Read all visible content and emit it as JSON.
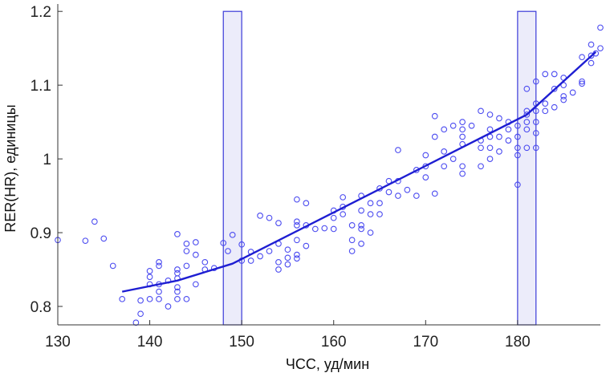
{
  "chart_data": {
    "type": "scatter",
    "title": "",
    "xlabel": "ЧСС, уд/мин",
    "ylabel": "RER(HR), единицы",
    "xlim": [
      130,
      189
    ],
    "ylim": [
      0.775,
      1.21
    ],
    "x_ticks": [
      130,
      140,
      150,
      160,
      170,
      180
    ],
    "x_tick_labels": [
      "130",
      "140",
      "150",
      "160",
      "170",
      "180"
    ],
    "y_ticks": [
      0.8,
      0.9,
      1.0,
      1.1,
      1.2
    ],
    "y_tick_labels": [
      "0.8",
      "0.9",
      "1",
      "1.1",
      "1.2"
    ],
    "grid": false,
    "legend": "none",
    "colors": {
      "points": "#4b4bf0",
      "line": "#1e1ed2",
      "box_fill": "#ececfa",
      "box_stroke": "#3a3ad8",
      "axis": "#333333"
    },
    "threshold_boxes": [
      {
        "x0": 148,
        "x1": 150,
        "y0": 0.775,
        "y1": 1.2
      },
      {
        "x0": 180,
        "x1": 182,
        "y0": 0.775,
        "y1": 1.2
      }
    ],
    "fit_line": [
      [
        137,
        0.82
      ],
      [
        143,
        0.835
      ],
      [
        149,
        0.858
      ],
      [
        181,
        1.06
      ],
      [
        188.5,
        1.145
      ]
    ],
    "series": [
      {
        "marker": "circle",
        "points": [
          [
            130,
            0.89
          ],
          [
            133,
            0.889
          ],
          [
            134,
            0.915
          ],
          [
            135,
            0.892
          ],
          [
            136,
            0.855
          ],
          [
            137,
            0.81
          ],
          [
            138.5,
            0.778
          ],
          [
            139,
            0.808
          ],
          [
            139,
            0.79
          ],
          [
            140,
            0.848
          ],
          [
            140,
            0.84
          ],
          [
            140,
            0.83
          ],
          [
            140,
            0.81
          ],
          [
            141,
            0.86
          ],
          [
            141,
            0.855
          ],
          [
            141,
            0.83
          ],
          [
            141,
            0.82
          ],
          [
            141,
            0.81
          ],
          [
            142,
            0.835
          ],
          [
            142,
            0.8
          ],
          [
            143,
            0.898
          ],
          [
            143,
            0.85
          ],
          [
            143,
            0.845
          ],
          [
            143,
            0.838
          ],
          [
            143,
            0.826
          ],
          [
            143,
            0.82
          ],
          [
            143,
            0.81
          ],
          [
            144,
            0.885
          ],
          [
            144,
            0.875
          ],
          [
            144,
            0.855
          ],
          [
            144,
            0.81
          ],
          [
            145,
            0.887
          ],
          [
            145,
            0.87
          ],
          [
            145,
            0.83
          ],
          [
            146,
            0.86
          ],
          [
            146,
            0.85
          ],
          [
            147,
            0.852
          ],
          [
            148,
            0.886
          ],
          [
            148.5,
            0.875
          ],
          [
            149,
            0.897
          ],
          [
            150,
            0.884
          ],
          [
            150,
            0.862
          ],
          [
            151,
            0.874
          ],
          [
            151,
            0.862
          ],
          [
            152,
            0.923
          ],
          [
            152,
            0.868
          ],
          [
            153,
            0.92
          ],
          [
            153,
            0.875
          ],
          [
            154,
            0.913
          ],
          [
            154,
            0.885
          ],
          [
            154,
            0.86
          ],
          [
            154,
            0.85
          ],
          [
            155,
            0.877
          ],
          [
            155,
            0.866
          ],
          [
            155,
            0.857
          ],
          [
            156,
            0.945
          ],
          [
            156,
            0.915
          ],
          [
            156,
            0.91
          ],
          [
            156,
            0.89
          ],
          [
            156,
            0.87
          ],
          [
            156,
            0.865
          ],
          [
            157,
            0.94
          ],
          [
            157,
            0.91
          ],
          [
            157,
            0.882
          ],
          [
            158,
            0.905
          ],
          [
            159,
            0.906
          ],
          [
            160,
            0.93
          ],
          [
            160,
            0.92
          ],
          [
            160,
            0.905
          ],
          [
            161,
            0.948
          ],
          [
            161,
            0.935
          ],
          [
            161,
            0.925
          ],
          [
            162,
            0.91
          ],
          [
            162,
            0.89
          ],
          [
            162,
            0.875
          ],
          [
            163,
            0.95
          ],
          [
            163,
            0.93
          ],
          [
            163,
            0.91
          ],
          [
            163,
            0.905
          ],
          [
            163,
            0.885
          ],
          [
            164,
            0.94
          ],
          [
            164,
            0.925
          ],
          [
            164,
            0.9
          ],
          [
            165,
            0.96
          ],
          [
            165,
            0.94
          ],
          [
            165,
            0.925
          ],
          [
            166,
            0.97
          ],
          [
            166,
            0.955
          ],
          [
            167,
            1.012
          ],
          [
            167,
            0.97
          ],
          [
            167,
            0.95
          ],
          [
            168,
            0.958
          ],
          [
            169,
            0.985
          ],
          [
            169,
            0.95
          ],
          [
            170,
            1.005
          ],
          [
            170,
            0.99
          ],
          [
            170,
            0.975
          ],
          [
            171,
            1.058
          ],
          [
            171,
            1.03
          ],
          [
            171,
            0.953
          ],
          [
            172,
            1.04
          ],
          [
            172,
            1.01
          ],
          [
            172,
            0.99
          ],
          [
            173,
            1.045
          ],
          [
            173,
            1.0
          ],
          [
            174,
            1.05
          ],
          [
            174,
            1.04
          ],
          [
            174,
            1.03
          ],
          [
            174,
            1.02
          ],
          [
            174,
            0.99
          ],
          [
            174,
            0.98
          ],
          [
            175,
            1.045
          ],
          [
            176,
            1.065
          ],
          [
            176,
            1.025
          ],
          [
            176,
            1.015
          ],
          [
            176,
            0.99
          ],
          [
            177,
            1.06
          ],
          [
            177,
            1.04
          ],
          [
            177,
            1.03
          ],
          [
            177,
            1.015
          ],
          [
            177,
            1.0
          ],
          [
            178,
            1.055
          ],
          [
            178,
            1.03
          ],
          [
            178,
            1.01
          ],
          [
            179,
            1.05
          ],
          [
            179,
            1.04
          ],
          [
            179,
            1.025
          ],
          [
            180,
            1.045
          ],
          [
            180,
            1.03
          ],
          [
            180,
            1.015
          ],
          [
            180,
            1.005
          ],
          [
            180,
            0.965
          ],
          [
            181,
            1.095
          ],
          [
            181,
            1.065
          ],
          [
            181,
            1.06
          ],
          [
            181,
            1.05
          ],
          [
            181,
            1.04
          ],
          [
            181,
            1.015
          ],
          [
            182,
            1.105
          ],
          [
            182,
            1.075
          ],
          [
            182,
            1.065
          ],
          [
            182,
            1.05
          ],
          [
            182,
            1.035
          ],
          [
            182,
            1.015
          ],
          [
            183,
            1.115
          ],
          [
            183,
            1.075
          ],
          [
            183,
            1.065
          ],
          [
            184,
            1.115
          ],
          [
            184,
            1.095
          ],
          [
            184,
            1.07
          ],
          [
            185,
            1.11
          ],
          [
            185,
            1.1
          ],
          [
            185,
            1.085
          ],
          [
            185,
            1.08
          ],
          [
            186,
            1.09
          ],
          [
            187,
            1.105
          ],
          [
            187,
            1.102
          ],
          [
            187,
            1.138
          ],
          [
            188,
            1.155
          ],
          [
            188,
            1.14
          ],
          [
            188,
            1.13
          ],
          [
            188.5,
            1.143
          ],
          [
            189,
            1.178
          ],
          [
            189,
            1.15
          ]
        ]
      }
    ]
  }
}
